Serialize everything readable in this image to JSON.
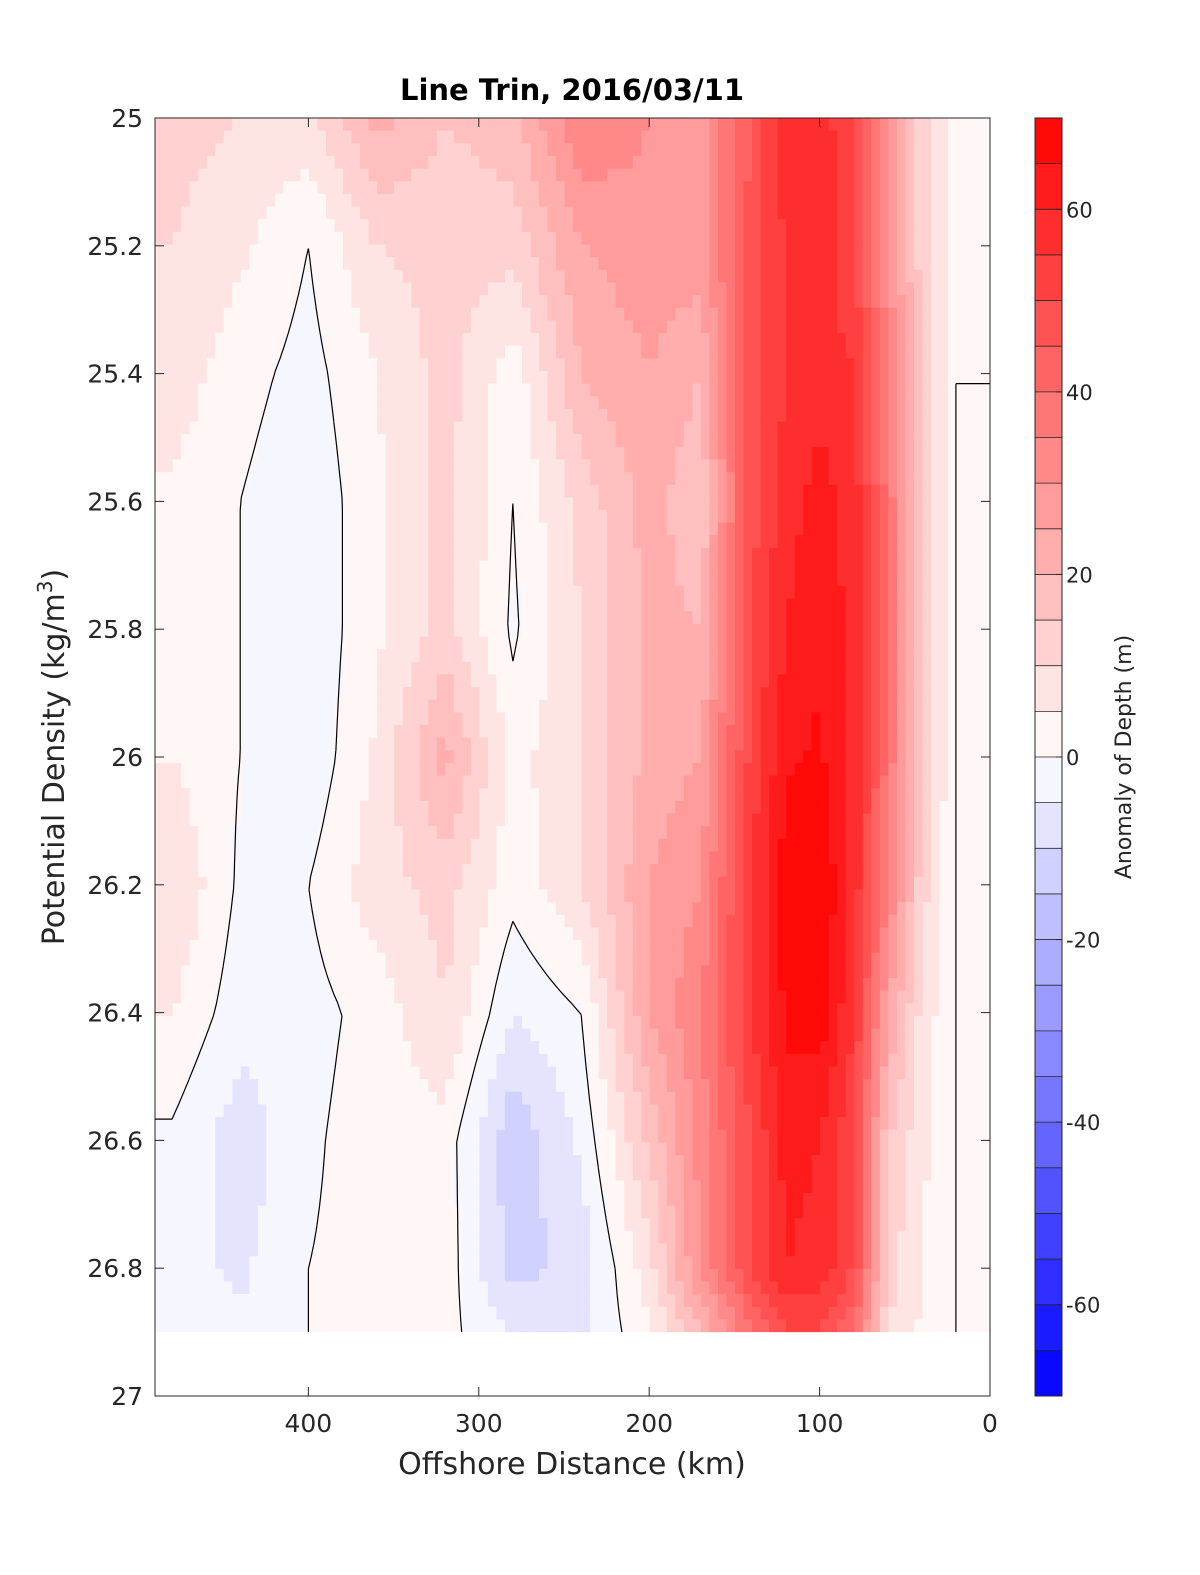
{
  "chart_data": {
    "type": "heatmap",
    "subtype": "filled-contour",
    "title": "Line Trin, 2016/03/11",
    "xlabel": "Offshore Distance (km)",
    "ylabel_text": "Potential Density (kg/m",
    "ylabel_sup": "3",
    "ylabel_close": ")",
    "xlim": [
      0,
      490
    ],
    "x_direction": "reversed",
    "ylim": [
      25,
      27
    ],
    "y_direction": "reversed",
    "x_ticks": [
      400,
      300,
      200,
      100,
      0
    ],
    "y_ticks": [
      25,
      25.2,
      25.4,
      25.6,
      25.8,
      26,
      26.2,
      26.4,
      26.6,
      26.8,
      27
    ],
    "y_tick_labels": [
      "25",
      "25.2",
      "25.4",
      "25.6",
      "25.8",
      "26",
      "26.2",
      "26.4",
      "26.6",
      "26.8",
      "27"
    ],
    "x_tick_labels": [
      "400",
      "300",
      "200",
      "100",
      "0"
    ],
    "data_extent": {
      "sigma_max": 26.9
    },
    "colorbar": {
      "label": "Anomaly of Depth (m)",
      "range": [
        -70,
        70
      ],
      "ticks": [
        60,
        40,
        20,
        0,
        -20,
        -40,
        -60
      ],
      "tick_labels": [
        "60",
        "40",
        "20",
        "0",
        "-20",
        "-40",
        "-60"
      ],
      "levels": 28,
      "color_positive": "#ff0000",
      "color_negative": "#0000ff",
      "color_zero": "#ffffff"
    },
    "contour_level": 0,
    "contour_color": "#000000",
    "grid": false,
    "x": [
      480,
      440,
      400,
      360,
      320,
      280,
      240,
      200,
      170,
      140,
      120,
      100,
      80,
      60,
      40,
      20
    ],
    "y": [
      25,
      25.2,
      25.4,
      25.6,
      25.8,
      26,
      26.2,
      26.4,
      26.6,
      26.8,
      26.9
    ],
    "z": [
      [
        12,
        10,
        8,
        22,
        15,
        18,
        35,
        30,
        28,
        45,
        60,
        58,
        50,
        30,
        12,
        2
      ],
      [
        10,
        6,
        0,
        10,
        12,
        12,
        25,
        28,
        28,
        48,
        55,
        58,
        50,
        30,
        12,
        2
      ],
      [
        8,
        2,
        -2,
        5,
        12,
        2,
        20,
        25,
        20,
        48,
        55,
        58,
        55,
        35,
        15,
        0
      ],
      [
        4,
        0,
        -4,
        4,
        12,
        0,
        12,
        22,
        16,
        48,
        58,
        62,
        58,
        38,
        15,
        0
      ],
      [
        2,
        0,
        -4,
        4,
        12,
        -1,
        10,
        22,
        20,
        50,
        60,
        64,
        58,
        38,
        15,
        0
      ],
      [
        5,
        0,
        -4,
        6,
        22,
        3,
        10,
        22,
        25,
        52,
        64,
        66,
        58,
        38,
        14,
        0
      ],
      [
        10,
        -1,
        0,
        8,
        12,
        2,
        10,
        25,
        30,
        55,
        68,
        70,
        58,
        35,
        12,
        0
      ],
      [
        5,
        -3,
        -2,
        2,
        10,
        -5,
        0,
        25,
        35,
        55,
        66,
        68,
        55,
        25,
        8,
        0
      ],
      [
        -1,
        -8,
        -1,
        3,
        3,
        -14,
        -4,
        16,
        32,
        50,
        62,
        60,
        50,
        15,
        6,
        0
      ],
      [
        -3,
        -6,
        0,
        2,
        3,
        -12,
        -8,
        8,
        30,
        50,
        60,
        58,
        50,
        12,
        5,
        0
      ],
      [
        -2,
        -4,
        0,
        1,
        2,
        -6,
        -6,
        4,
        20,
        40,
        50,
        50,
        40,
        10,
        4,
        0
      ]
    ]
  }
}
